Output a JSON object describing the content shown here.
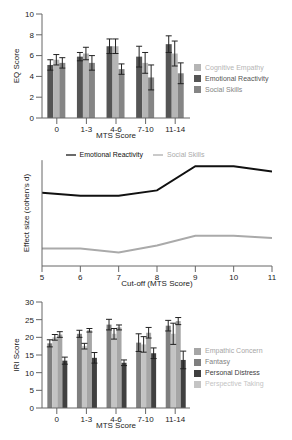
{
  "chart_data": [
    {
      "type": "bar",
      "x_label": "MTS Score",
      "y_label": "EQ Score",
      "categories": [
        "0",
        "1-3",
        "4-6",
        "7-10",
        "11-14"
      ],
      "ylim": [
        0,
        10
      ],
      "yticks": [
        0,
        2,
        4,
        6,
        8,
        10
      ],
      "grid": false,
      "legend": "right",
      "series": [
        {
          "name": "Emotional Reactivity",
          "color": "#555555",
          "values": [
            5.1,
            5.9,
            6.9,
            5.9,
            7.1
          ],
          "errors": [
            0.5,
            0.4,
            0.7,
            1.0,
            0.8
          ]
        },
        {
          "name": "Cognitive Empathy",
          "color": "#b5b5b5",
          "values": [
            5.6,
            6.2,
            6.9,
            5.3,
            6.2
          ],
          "errors": [
            0.5,
            0.6,
            0.7,
            1.0,
            1.2
          ]
        },
        {
          "name": "Social Skills",
          "color": "#858585",
          "values": [
            5.3,
            5.3,
            4.7,
            3.9,
            4.3
          ],
          "errors": [
            0.5,
            0.7,
            0.5,
            1.2,
            1.0
          ]
        }
      ]
    },
    {
      "type": "line",
      "x_label": "Cut-off (MTS Score)",
      "y_label": "Effect size (cohen's d)",
      "x": [
        5,
        6,
        7,
        8,
        9,
        10,
        11
      ],
      "xlim": [
        5,
        11
      ],
      "xticks": [
        5,
        6,
        7,
        8,
        9,
        10,
        11
      ],
      "ylim": [
        -0.6,
        0.8
      ],
      "tick_labels": "x",
      "grid": false,
      "legend": "top",
      "series": [
        {
          "name": "Emotional Reactivity",
          "color": "#111111",
          "values": [
            0.37,
            0.33,
            0.33,
            0.4,
            0.72,
            0.72,
            0.65
          ]
        },
        {
          "name": "Social Skills",
          "color": "#aaaaaa",
          "values": [
            -0.37,
            -0.37,
            -0.42,
            -0.33,
            -0.2,
            -0.2,
            -0.23
          ]
        }
      ]
    },
    {
      "type": "bar",
      "x_label": "MTS Score",
      "y_label": "IRI Score",
      "categories": [
        "0",
        "1-3",
        "4-6",
        "7-10",
        "11-14"
      ],
      "ylim": [
        0,
        30
      ],
      "yticks": [
        0,
        5,
        10,
        15,
        20,
        25,
        30
      ],
      "grid": false,
      "legend": "right",
      "series": [
        {
          "name": "Fantasy",
          "color": "#7f7f7f",
          "values": [
            18.3,
            21.0,
            23.6,
            18.5,
            23.3
          ],
          "errors": [
            1.0,
            1.0,
            1.5,
            2.5,
            1.5
          ]
        },
        {
          "name": "Perspective Taking",
          "color": "#c4c4c4",
          "values": [
            20.0,
            17.5,
            21.0,
            18.0,
            21.0
          ],
          "errors": [
            0.8,
            0.8,
            1.5,
            2.2,
            3.0
          ]
        },
        {
          "name": "Empathic Concern",
          "color": "#a6a6a6",
          "values": [
            20.8,
            22.0,
            22.8,
            21.3,
            24.6
          ],
          "errors": [
            0.8,
            0.5,
            0.7,
            1.5,
            1.0
          ]
        },
        {
          "name": "Personal Distress",
          "color": "#404040",
          "values": [
            13.4,
            14.2,
            12.8,
            15.5,
            13.6
          ],
          "errors": [
            1.0,
            1.5,
            0.8,
            1.5,
            2.5
          ]
        }
      ]
    }
  ]
}
